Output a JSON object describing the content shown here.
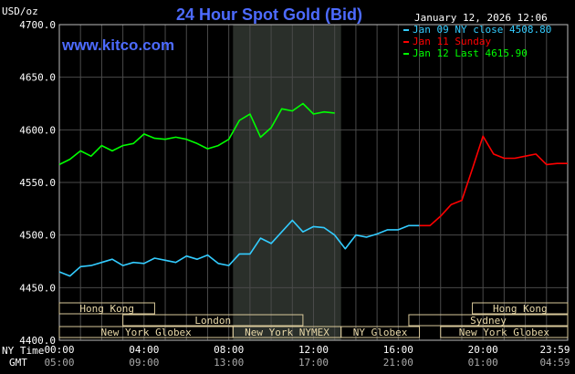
{
  "chart_data": {
    "type": "line",
    "title": "24 Hour Spot Gold (Bid)",
    "site": "www.kitco.com",
    "datetime": "January 12, 2026 12:06",
    "ylabel": "USD/oz",
    "ylim": [
      4400,
      4700
    ],
    "yticks": [
      "4700.0",
      "4650.0",
      "4600.0",
      "4550.0",
      "4500.0",
      "4450.0",
      "4400.0"
    ],
    "x_tz_label": "NY Time",
    "x2_tz_label": "GMT",
    "xticks": [
      "00:00",
      "04:00",
      "08:00",
      "12:00",
      "16:00",
      "20:00",
      "23:59"
    ],
    "xticks_gmt": [
      "05:00",
      "09:00",
      "13:00",
      "17:00",
      "21:00",
      "01:00",
      "04:59"
    ],
    "xlim_hours": [
      0,
      24
    ],
    "grid": true,
    "highlight_hours": [
      8.2,
      13.3
    ],
    "colors": {
      "jan9": "#33ccff",
      "jan11": "#ff0000",
      "jan12": "#00ff00",
      "grid": "#4a4a4a",
      "text": "#ffffff",
      "title": "#4d6bff",
      "band": "#2a2f2a"
    },
    "legend": [
      {
        "text": "Jan 09 NY close 4508.80",
        "color": "#33ccff"
      },
      {
        "text": "Jan 11 Sunday",
        "color": "#ff0000"
      },
      {
        "text": "Jan 12 Last 4615.90",
        "color": "#00ff00"
      }
    ],
    "series": [
      {
        "name": "Jan 09 NY close 4508.80",
        "color": "#33ccff",
        "x": [
          0,
          0.5,
          1,
          1.5,
          2,
          2.5,
          3,
          3.5,
          4,
          4.5,
          5,
          5.5,
          6,
          6.5,
          7,
          7.5,
          8,
          8.5,
          9,
          9.5,
          10,
          10.5,
          11,
          11.5,
          12,
          12.5,
          13,
          13.5,
          14,
          14.5,
          15,
          15.5,
          16,
          16.5,
          17
        ],
        "y": [
          4465,
          4461,
          4470,
          4471,
          4474,
          4477,
          4471,
          4474,
          4473,
          4478,
          4476,
          4474,
          4480,
          4477,
          4481,
          4473,
          4471,
          4482,
          4482,
          4497,
          4492,
          4503,
          4514,
          4503,
          4508,
          4507,
          4500,
          4487,
          4500,
          4498,
          4501,
          4505,
          4505,
          4509,
          4509
        ]
      },
      {
        "name": "Jan 11 Sunday",
        "color": "#ff0000",
        "x": [
          17,
          17.5,
          18,
          18.5,
          19,
          19.5,
          20,
          20.5,
          21,
          21.5,
          22,
          22.5,
          23,
          23.5,
          24
        ],
        "y": [
          4509,
          4509,
          4518,
          4529,
          4533,
          4563,
          4594,
          4577,
          4573,
          4573,
          4575,
          4577,
          4567,
          4568,
          4568
        ]
      },
      {
        "name": "Jan 12 Last 4615.90",
        "color": "#00ff00",
        "x": [
          0,
          0.5,
          1,
          1.5,
          2,
          2.5,
          3,
          3.5,
          4,
          4.5,
          5,
          5.5,
          6,
          6.5,
          7,
          7.5,
          8,
          8.5,
          9,
          9.5,
          10,
          10.5,
          11,
          11.5,
          12,
          12.5,
          13
        ],
        "y": [
          4567,
          4572,
          4580,
          4575,
          4585,
          4580,
          4585,
          4587,
          4596,
          4592,
          4591,
          4593,
          4591,
          4587,
          4582,
          4585,
          4591,
          4609,
          4615,
          4593,
          4602,
          4620,
          4618,
          4625,
          4615,
          4617,
          4616
        ]
      }
    ],
    "sessions": [
      {
        "label": "Hong Kong",
        "start": 0,
        "end": 4.5,
        "row": 0
      },
      {
        "label": "London",
        "start": 3,
        "end": 11.5,
        "row": 1
      },
      {
        "label": "New York Globex",
        "start": 0,
        "end": 8.2,
        "row": 2
      },
      {
        "label": "New York NYMEX",
        "start": 8.2,
        "end": 13.3,
        "row": 2
      },
      {
        "label": "NY Globex",
        "start": 13.3,
        "end": 17,
        "row": 2
      },
      {
        "label": "Hong Kong",
        "start": 19.5,
        "end": 24,
        "row": 0
      },
      {
        "label": "Sydney",
        "start": 16.5,
        "end": 24,
        "row": 1
      },
      {
        "label": "New York Globex",
        "start": 18,
        "end": 24,
        "row": 2
      }
    ]
  }
}
